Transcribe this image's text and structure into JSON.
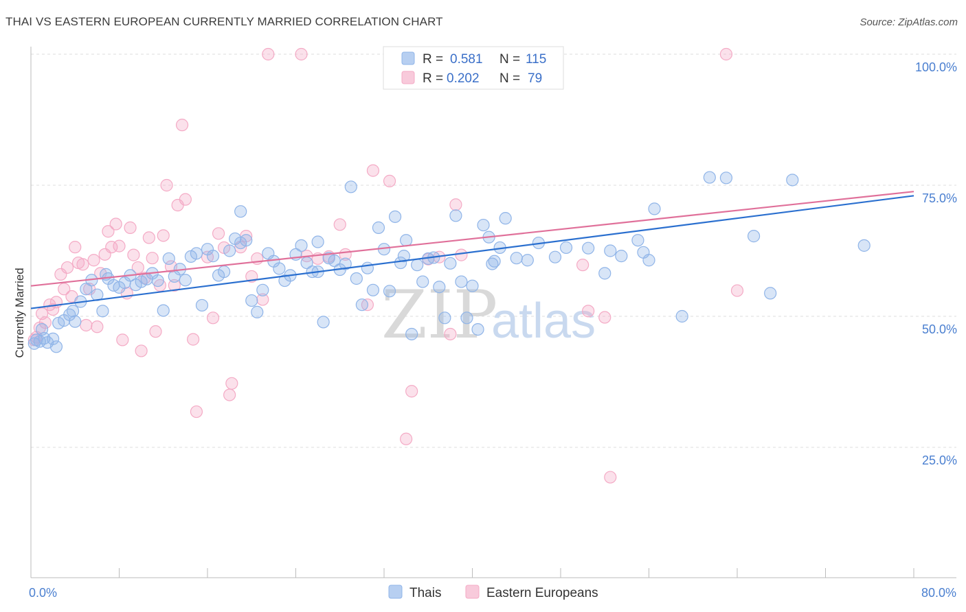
{
  "title": "THAI VS EASTERN EUROPEAN CURRENTLY MARRIED CORRELATION CHART",
  "source": "Source: ZipAtlas.com",
  "chart_data": {
    "type": "scatter",
    "ylabel": "Currently Married",
    "xlim": [
      0,
      80
    ],
    "ylim": [
      0,
      100
    ],
    "x_tick_labels": [
      "0.0%",
      "80.0%"
    ],
    "y_ticks": [
      25,
      50,
      75,
      100
    ],
    "y_tick_labels": [
      "25.0%",
      "50.0%",
      "75.0%",
      "100.0%"
    ],
    "legend": {
      "series1": {
        "r_label": "R =",
        "r_value": "0.581",
        "n_label": "N =",
        "n_value": "115"
      },
      "series2": {
        "r_label": "R =",
        "r_value": "0.202",
        "n_label": "N =",
        "n_value": "79"
      }
    },
    "watermark": {
      "part1": "ZIP",
      "part2": "atlas"
    },
    "series": [
      {
        "name": "Thais",
        "color": "#8fb4e8",
        "line_color": "#2a6fcf",
        "trend": [
          [
            0,
            51.5
          ],
          [
            80,
            73.0
          ]
        ],
        "points": [
          [
            0.5,
            45.5
          ],
          [
            0.8,
            45.2
          ],
          [
            1.2,
            45.8
          ],
          [
            1.5,
            45.0
          ],
          [
            2.0,
            45.7
          ],
          [
            2.3,
            44.2
          ],
          [
            2.5,
            48.7
          ],
          [
            3.0,
            49.2
          ],
          [
            3.5,
            50.3
          ],
          [
            4.0,
            49.0
          ],
          [
            4.5,
            52.8
          ],
          [
            5.0,
            55.2
          ],
          [
            5.5,
            56.9
          ],
          [
            6.0,
            54.1
          ],
          [
            6.5,
            51.0
          ],
          [
            7.0,
            57.2
          ],
          [
            7.5,
            55.9
          ],
          [
            8.0,
            55.5
          ],
          [
            8.5,
            56.4
          ],
          [
            9.0,
            57.8
          ],
          [
            9.5,
            56.0
          ],
          [
            10.0,
            56.6
          ],
          [
            10.5,
            57.1
          ],
          [
            11.0,
            58.2
          ],
          [
            11.5,
            56.8
          ],
          [
            12.0,
            51.1
          ],
          [
            12.5,
            61.0
          ],
          [
            13.0,
            57.6
          ],
          [
            14.0,
            56.9
          ],
          [
            14.5,
            61.4
          ],
          [
            15.0,
            62.0
          ],
          [
            15.5,
            52.1
          ],
          [
            16.0,
            62.8
          ],
          [
            16.5,
            61.5
          ],
          [
            17.0,
            57.8
          ],
          [
            17.5,
            58.5
          ],
          [
            18.0,
            62.5
          ],
          [
            18.5,
            64.8
          ],
          [
            19.0,
            70.0
          ],
          [
            19.5,
            64.5
          ],
          [
            20.0,
            53.0
          ],
          [
            20.5,
            50.8
          ],
          [
            21.0,
            55.0
          ],
          [
            21.5,
            62.0
          ],
          [
            22.0,
            60.5
          ],
          [
            22.5,
            59.1
          ],
          [
            23.0,
            56.8
          ],
          [
            23.5,
            57.8
          ],
          [
            24.0,
            61.8
          ],
          [
            24.5,
            63.5
          ],
          [
            25.0,
            60.2
          ],
          [
            25.5,
            58.5
          ],
          [
            26.0,
            64.2
          ],
          [
            26.5,
            48.9
          ],
          [
            27.0,
            61.1
          ],
          [
            27.5,
            60.6
          ],
          [
            28.0,
            58.9
          ],
          [
            28.5,
            60.0
          ],
          [
            29.0,
            74.7
          ],
          [
            29.5,
            57.2
          ],
          [
            30.0,
            52.2
          ],
          [
            30.5,
            59.2
          ],
          [
            31.0,
            55.0
          ],
          [
            31.5,
            66.9
          ],
          [
            32.0,
            62.8
          ],
          [
            32.5,
            54.8
          ],
          [
            33.0,
            69.0
          ],
          [
            33.5,
            60.2
          ],
          [
            34.0,
            64.5
          ],
          [
            34.5,
            46.6
          ],
          [
            35.0,
            59.8
          ],
          [
            35.5,
            56.6
          ],
          [
            36.0,
            61.0
          ],
          [
            36.5,
            61.2
          ],
          [
            37.0,
            55.6
          ],
          [
            37.5,
            49.7
          ],
          [
            38.0,
            60.1
          ],
          [
            38.5,
            69.2
          ],
          [
            39.0,
            56.6
          ],
          [
            39.5,
            49.7
          ],
          [
            40.0,
            55.8
          ],
          [
            40.5,
            47.5
          ],
          [
            41.0,
            67.4
          ],
          [
            41.5,
            65.1
          ],
          [
            42.0,
            60.5
          ],
          [
            42.5,
            63.1
          ],
          [
            43.0,
            68.7
          ],
          [
            44.0,
            61.1
          ],
          [
            45.0,
            60.7
          ],
          [
            46.0,
            64.0
          ],
          [
            47.5,
            61.3
          ],
          [
            48.5,
            63.1
          ],
          [
            50.5,
            63.0
          ],
          [
            52.0,
            58.2
          ],
          [
            53.5,
            61.5
          ],
          [
            55.0,
            64.5
          ],
          [
            55.5,
            62.2
          ],
          [
            56.0,
            60.7
          ],
          [
            56.5,
            70.5
          ],
          [
            59.0,
            50.0
          ],
          [
            61.5,
            76.5
          ],
          [
            63.0,
            76.4
          ],
          [
            65.5,
            65.3
          ],
          [
            67.0,
            54.4
          ],
          [
            69.0,
            76.0
          ],
          [
            75.5,
            63.5
          ],
          [
            0.3,
            44.8
          ],
          [
            1.0,
            47.5
          ],
          [
            3.8,
            51.0
          ],
          [
            6.8,
            58.0
          ],
          [
            13.5,
            59.0
          ],
          [
            19.0,
            64.0
          ],
          [
            26.0,
            58.5
          ],
          [
            33.8,
            61.5
          ],
          [
            41.8,
            60.0
          ],
          [
            52.5,
            62.5
          ]
        ]
      },
      {
        "name": "Eastern Europeans",
        "color": "#f4aac5",
        "line_color": "#e0709a",
        "trend": [
          [
            0,
            55.8
          ],
          [
            80,
            73.8
          ]
        ],
        "points": [
          [
            0.3,
            45.5
          ],
          [
            0.5,
            46.0
          ],
          [
            0.8,
            47.8
          ],
          [
            1.0,
            50.5
          ],
          [
            1.3,
            48.8
          ],
          [
            1.7,
            52.2
          ],
          [
            2.0,
            51.3
          ],
          [
            2.3,
            52.7
          ],
          [
            2.7,
            58.0
          ],
          [
            3.0,
            55.2
          ],
          [
            3.3,
            59.3
          ],
          [
            3.7,
            53.8
          ],
          [
            4.0,
            63.2
          ],
          [
            4.3,
            60.2
          ],
          [
            4.7,
            59.9
          ],
          [
            5.0,
            48.3
          ],
          [
            5.3,
            55.2
          ],
          [
            5.7,
            60.7
          ],
          [
            6.0,
            48.0
          ],
          [
            6.3,
            58.2
          ],
          [
            6.7,
            61.8
          ],
          [
            7.0,
            66.2
          ],
          [
            7.3,
            63.2
          ],
          [
            7.7,
            67.6
          ],
          [
            8.0,
            63.4
          ],
          [
            8.3,
            45.5
          ],
          [
            8.7,
            54.4
          ],
          [
            9.0,
            66.9
          ],
          [
            9.3,
            61.7
          ],
          [
            9.7,
            59.3
          ],
          [
            10.0,
            43.4
          ],
          [
            10.3,
            57.3
          ],
          [
            10.7,
            65.0
          ],
          [
            11.0,
            61.1
          ],
          [
            11.3,
            47.1
          ],
          [
            11.7,
            55.9
          ],
          [
            12.0,
            65.4
          ],
          [
            12.3,
            75.0
          ],
          [
            12.7,
            59.5
          ],
          [
            13.0,
            55.9
          ],
          [
            13.3,
            71.2
          ],
          [
            13.7,
            86.5
          ],
          [
            14.0,
            72.3
          ],
          [
            14.7,
            45.6
          ],
          [
            15.0,
            31.8
          ],
          [
            16.0,
            61.3
          ],
          [
            16.5,
            49.7
          ],
          [
            17.0,
            65.8
          ],
          [
            17.5,
            63.1
          ],
          [
            18.0,
            35.0
          ],
          [
            18.2,
            37.2
          ],
          [
            19.0,
            63.2
          ],
          [
            19.5,
            65.3
          ],
          [
            20.0,
            57.6
          ],
          [
            20.5,
            61.0
          ],
          [
            21.0,
            53.2
          ],
          [
            21.5,
            100.0
          ],
          [
            24.5,
            100.0
          ],
          [
            25.0,
            61.5
          ],
          [
            26.0,
            61.0
          ],
          [
            27.0,
            61.4
          ],
          [
            28.0,
            67.5
          ],
          [
            28.5,
            61.8
          ],
          [
            30.5,
            52.2
          ],
          [
            31.0,
            77.8
          ],
          [
            32.5,
            75.8
          ],
          [
            34.0,
            26.6
          ],
          [
            34.5,
            35.7
          ],
          [
            36.0,
            60.9
          ],
          [
            37.0,
            61.3
          ],
          [
            38.0,
            46.6
          ],
          [
            38.5,
            71.3
          ],
          [
            39.0,
            61.7
          ],
          [
            50.0,
            59.8
          ],
          [
            50.5,
            51.0
          ],
          [
            52.0,
            49.8
          ],
          [
            52.5,
            19.3
          ],
          [
            63.0,
            100.0
          ],
          [
            64.0,
            54.9
          ]
        ]
      }
    ]
  },
  "bottom_legend": {
    "series1": "Thais",
    "series2": "Eastern Europeans"
  }
}
